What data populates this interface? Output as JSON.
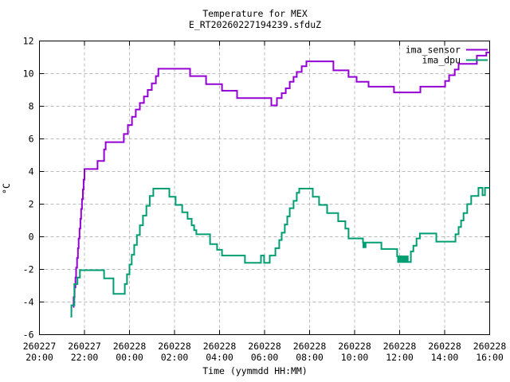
{
  "chart_data": {
    "type": "line",
    "title": "Temperature for MEX",
    "subtitle": "E_RT20260227194239.sfduZ",
    "xlabel": "Time (yymmdd HH:MM)",
    "ylabel": "°C",
    "grid": true,
    "x_axis": {
      "range": [
        0,
        20
      ],
      "ticks": [
        {
          "t": 0,
          "line1": "260227",
          "line2": "20:00"
        },
        {
          "t": 2,
          "line1": "260227",
          "line2": "22:00"
        },
        {
          "t": 4,
          "line1": "260228",
          "line2": "00:00"
        },
        {
          "t": 6,
          "line1": "260228",
          "line2": "02:00"
        },
        {
          "t": 8,
          "line1": "260228",
          "line2": "04:00"
        },
        {
          "t": 10,
          "line1": "260228",
          "line2": "06:00"
        },
        {
          "t": 12,
          "line1": "260228",
          "line2": "08:00"
        },
        {
          "t": 14,
          "line1": "260228",
          "line2": "10:00"
        },
        {
          "t": 16,
          "line1": "260228",
          "line2": "12:00"
        },
        {
          "t": 18,
          "line1": "260228",
          "line2": "14:00"
        },
        {
          "t": 20,
          "line1": "260228",
          "line2": "16:00"
        }
      ]
    },
    "y_axis": {
      "range": [
        -6,
        12
      ],
      "ticks": [
        -6,
        -4,
        -2,
        0,
        2,
        4,
        6,
        8,
        10,
        12
      ]
    },
    "legend": {
      "position": "top-right",
      "entries": [
        {
          "label": "ima_sensor",
          "color": "#9400d3"
        },
        {
          "label": "ima_dpu",
          "color": "#009e73"
        }
      ]
    },
    "series": [
      {
        "name": "ima_sensor",
        "color": "#9400d3",
        "mode": "step-after",
        "points": [
          [
            1.49,
            -4.3
          ],
          [
            1.52,
            -3.7
          ],
          [
            1.56,
            -3.1
          ],
          [
            1.6,
            -2.5
          ],
          [
            1.63,
            -1.9
          ],
          [
            1.67,
            -1.3
          ],
          [
            1.71,
            -0.7
          ],
          [
            1.74,
            -0.1
          ],
          [
            1.78,
            0.5
          ],
          [
            1.82,
            1.1
          ],
          [
            1.85,
            1.7
          ],
          [
            1.89,
            2.3
          ],
          [
            1.93,
            2.9
          ],
          [
            1.96,
            3.5
          ],
          [
            2.0,
            4.15
          ],
          [
            2.58,
            4.65
          ],
          [
            2.87,
            5.35
          ],
          [
            2.94,
            5.8
          ],
          [
            3.75,
            6.3
          ],
          [
            3.93,
            6.85
          ],
          [
            4.11,
            7.35
          ],
          [
            4.28,
            7.8
          ],
          [
            4.46,
            8.2
          ],
          [
            4.64,
            8.6
          ],
          [
            4.81,
            9.0
          ],
          [
            4.99,
            9.4
          ],
          [
            5.17,
            9.85
          ],
          [
            5.28,
            10.3
          ],
          [
            6.69,
            9.85
          ],
          [
            7.4,
            9.35
          ],
          [
            8.11,
            8.95
          ],
          [
            8.78,
            8.5
          ],
          [
            10.3,
            8.05
          ],
          [
            10.55,
            8.5
          ],
          [
            10.76,
            8.8
          ],
          [
            10.94,
            9.1
          ],
          [
            11.12,
            9.5
          ],
          [
            11.29,
            9.8
          ],
          [
            11.43,
            10.1
          ],
          [
            11.65,
            10.45
          ],
          [
            11.86,
            10.75
          ],
          [
            13.06,
            10.2
          ],
          [
            13.73,
            9.8
          ],
          [
            14.09,
            9.5
          ],
          [
            14.62,
            9.2
          ],
          [
            15.75,
            8.85
          ],
          [
            16.92,
            9.2
          ],
          [
            18.02,
            9.55
          ],
          [
            18.2,
            9.9
          ],
          [
            18.45,
            10.25
          ],
          [
            18.62,
            10.6
          ],
          [
            19.43,
            11.1
          ],
          [
            19.85,
            11.3
          ]
        ]
      },
      {
        "name": "ima_dpu",
        "color": "#009e73",
        "mode": "step-after",
        "points": [
          [
            1.38,
            -4.9
          ],
          [
            1.42,
            -4.2
          ],
          [
            1.55,
            -2.9
          ],
          [
            1.69,
            -2.5
          ],
          [
            1.8,
            -2.05
          ],
          [
            2.87,
            -2.55
          ],
          [
            3.29,
            -3.5
          ],
          [
            3.79,
            -2.9
          ],
          [
            3.89,
            -2.3
          ],
          [
            4.0,
            -1.7
          ],
          [
            4.1,
            -1.1
          ],
          [
            4.21,
            -0.5
          ],
          [
            4.33,
            0.1
          ],
          [
            4.46,
            0.7
          ],
          [
            4.6,
            1.3
          ],
          [
            4.75,
            1.9
          ],
          [
            4.9,
            2.5
          ],
          [
            5.06,
            2.95
          ],
          [
            5.77,
            2.45
          ],
          [
            6.05,
            1.95
          ],
          [
            6.34,
            1.5
          ],
          [
            6.58,
            1.1
          ],
          [
            6.76,
            0.7
          ],
          [
            6.87,
            0.4
          ],
          [
            6.97,
            0.15
          ],
          [
            7.58,
            -0.45
          ],
          [
            7.89,
            -0.8
          ],
          [
            8.11,
            -1.15
          ],
          [
            9.13,
            -1.6
          ],
          [
            9.84,
            -1.15
          ],
          [
            9.98,
            -1.6
          ],
          [
            10.23,
            -1.15
          ],
          [
            10.48,
            -0.7
          ],
          [
            10.65,
            -0.2
          ],
          [
            10.76,
            0.25
          ],
          [
            10.9,
            0.75
          ],
          [
            11.01,
            1.25
          ],
          [
            11.12,
            1.75
          ],
          [
            11.29,
            2.2
          ],
          [
            11.43,
            2.7
          ],
          [
            11.54,
            2.95
          ],
          [
            12.14,
            2.45
          ],
          [
            12.42,
            1.95
          ],
          [
            12.78,
            1.45
          ],
          [
            13.27,
            0.95
          ],
          [
            13.59,
            0.5
          ],
          [
            13.73,
            -0.1
          ],
          [
            14.37,
            -0.35
          ],
          [
            14.39,
            -0.65
          ],
          [
            14.41,
            -0.35
          ],
          [
            14.46,
            -0.65
          ],
          [
            14.49,
            -0.35
          ],
          [
            15.19,
            -0.75
          ],
          [
            15.89,
            -1.2
          ],
          [
            15.93,
            -1.55
          ],
          [
            15.98,
            -1.2
          ],
          [
            16.02,
            -1.55
          ],
          [
            16.08,
            -1.2
          ],
          [
            16.12,
            -1.55
          ],
          [
            16.19,
            -1.2
          ],
          [
            16.24,
            -1.55
          ],
          [
            16.31,
            -1.2
          ],
          [
            16.36,
            -1.55
          ],
          [
            16.5,
            -0.9
          ],
          [
            16.61,
            -0.55
          ],
          [
            16.75,
            -0.1
          ],
          [
            16.9,
            0.2
          ],
          [
            17.63,
            -0.3
          ],
          [
            18.48,
            0.15
          ],
          [
            18.62,
            0.6
          ],
          [
            18.73,
            1.0
          ],
          [
            18.84,
            1.45
          ],
          [
            19.0,
            2.0
          ],
          [
            19.18,
            2.5
          ],
          [
            19.5,
            3.0
          ],
          [
            19.68,
            2.55
          ],
          [
            19.79,
            3.0
          ]
        ]
      }
    ],
    "colors": {
      "frame": "#000000",
      "grid": "#bbbbbb",
      "text": "#000000",
      "background": "#ffffff"
    }
  }
}
